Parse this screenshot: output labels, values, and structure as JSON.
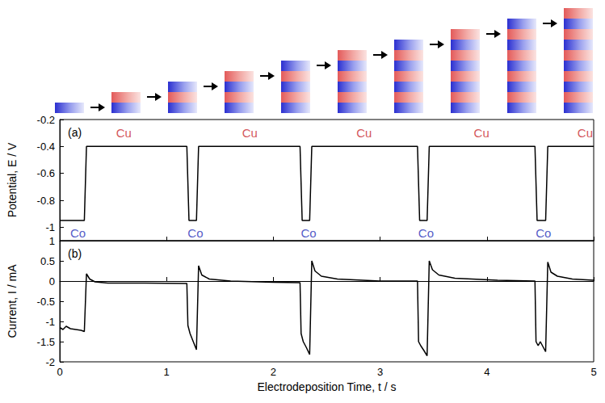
{
  "chart_data": [
    {
      "type": "line",
      "title": "(a)",
      "y_label": "Potential, E / V",
      "x": [
        0,
        0.23,
        0.25,
        1.19,
        1.21,
        1.28,
        1.3,
        2.25,
        2.27,
        2.34,
        2.36,
        3.35,
        3.37,
        3.44,
        3.46,
        4.45,
        4.47,
        4.55,
        4.57,
        5
      ],
      "values": [
        -0.95,
        -0.95,
        -0.4,
        -0.4,
        -0.95,
        -0.95,
        -0.4,
        -0.4,
        -0.95,
        -0.95,
        -0.4,
        -0.4,
        -0.95,
        -0.95,
        -0.4,
        -0.4,
        -0.95,
        -0.95,
        -0.4,
        -0.4
      ],
      "color": "#000000",
      "xlim": [
        0,
        5
      ],
      "xticks": [
        0,
        1,
        2,
        3,
        4,
        5
      ],
      "ylim": [
        -1.1,
        -0.2
      ],
      "yticks": [
        -1,
        -0.8,
        -0.6,
        -0.4,
        -0.2
      ],
      "grid": false,
      "tick_labels": "y",
      "annotations": [
        {
          "text": "Cu",
          "x": 0.6,
          "y": -0.3,
          "color": "#c8282d"
        },
        {
          "text": "Cu",
          "x": 1.78,
          "y": -0.3,
          "color": "#c8282d"
        },
        {
          "text": "Cu",
          "x": 2.85,
          "y": -0.3,
          "color": "#c8282d"
        },
        {
          "text": "Cu",
          "x": 3.95,
          "y": -0.3,
          "color": "#c8282d"
        },
        {
          "text": "Cu",
          "x": 4.92,
          "y": -0.3,
          "color": "#c8282d"
        },
        {
          "text": "Co",
          "x": 0.17,
          "y": -1.04,
          "color": "#2630b8"
        },
        {
          "text": "Co",
          "x": 1.27,
          "y": -1.04,
          "color": "#2630b8"
        },
        {
          "text": "Co",
          "x": 2.33,
          "y": -1.04,
          "color": "#2630b8"
        },
        {
          "text": "Co",
          "x": 3.43,
          "y": -1.04,
          "color": "#2630b8"
        },
        {
          "text": "Co",
          "x": 4.53,
          "y": -1.04,
          "color": "#2630b8"
        }
      ]
    },
    {
      "type": "line",
      "title": "(b)",
      "y_label": "Current, I / mA",
      "x_label": "Electrodeposition Time, t / s",
      "x": [
        0,
        0.03,
        0.06,
        0.1,
        0.15,
        0.2,
        0.23,
        0.25,
        0.28,
        0.33,
        0.45,
        0.8,
        1.19,
        1.2,
        1.22,
        1.25,
        1.28,
        1.3,
        1.33,
        1.4,
        1.6,
        2.0,
        2.25,
        2.26,
        2.28,
        2.31,
        2.34,
        2.36,
        2.39,
        2.45,
        2.6,
        3.0,
        3.35,
        3.36,
        3.38,
        3.41,
        3.44,
        3.46,
        3.49,
        3.55,
        3.7,
        4.1,
        4.45,
        4.46,
        4.48,
        4.5,
        4.53,
        4.55,
        4.57,
        4.6,
        4.66,
        4.8,
        5.0
      ],
      "values": [
        -1.15,
        -1.2,
        -1.12,
        -1.18,
        -1.2,
        -1.22,
        -1.25,
        0.18,
        0.05,
        -0.02,
        -0.05,
        -0.05,
        -0.06,
        -1.1,
        -1.3,
        -1.5,
        -1.7,
        0.38,
        0.15,
        0.05,
        0.0,
        -0.03,
        -0.04,
        -1.3,
        -1.5,
        -1.65,
        -1.82,
        0.5,
        0.25,
        0.12,
        0.05,
        0.0,
        0.0,
        -1.5,
        -1.6,
        -1.72,
        -1.85,
        0.5,
        0.28,
        0.15,
        0.07,
        0.02,
        0.0,
        -1.5,
        -1.6,
        -1.5,
        -1.65,
        -1.75,
        0.47,
        0.22,
        0.12,
        0.05,
        0.02
      ],
      "color": "#000000",
      "xlim": [
        0,
        5
      ],
      "xticks": [
        0,
        1,
        2,
        3,
        4,
        5
      ],
      "ylim": [
        -2,
        1
      ],
      "yticks": [
        -2,
        -1.5,
        -1,
        -0.5,
        0,
        0.5,
        1
      ],
      "grid": false,
      "tick_labels": true
    }
  ]
}
